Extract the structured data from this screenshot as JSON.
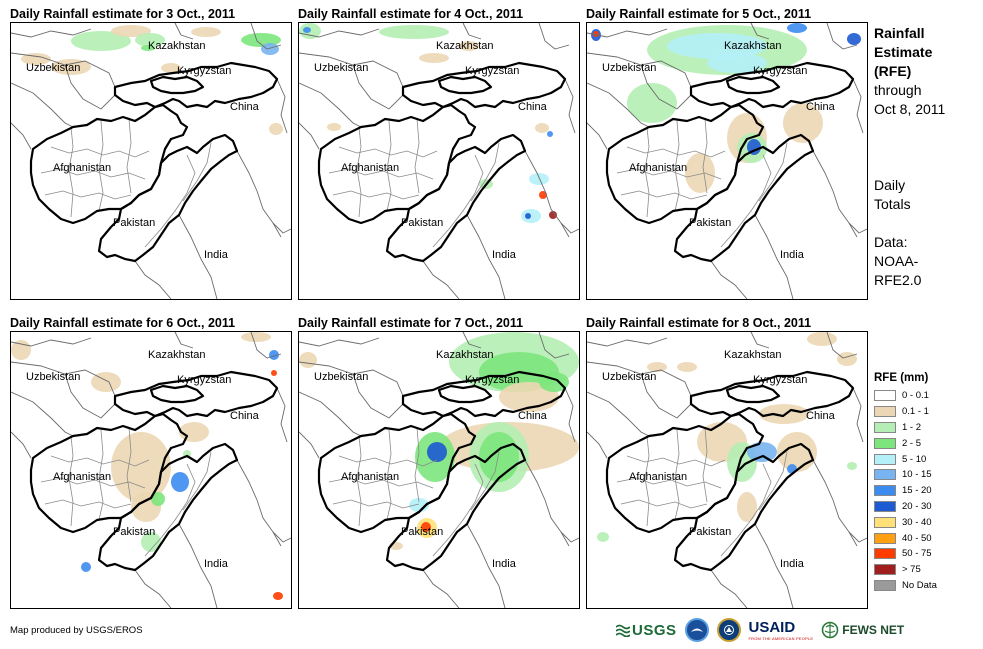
{
  "panels": [
    {
      "title": "Daily Rainfall estimate for 3 Oct., 2011"
    },
    {
      "title": "Daily Rainfall estimate for 4 Oct., 2011"
    },
    {
      "title": "Daily Rainfall estimate for 5 Oct., 2011"
    },
    {
      "title": "Daily Rainfall estimate for 6 Oct., 2011"
    },
    {
      "title": "Daily Rainfall estimate for 7 Oct., 2011"
    },
    {
      "title": "Daily Rainfall estimate for 8 Oct., 2011"
    }
  ],
  "countries": {
    "kazakhstan": "Kazakhstan",
    "uzbekistan": "Uzbekistan",
    "kyrgyzstan": "Kyrgyzstan",
    "china": "China",
    "afghanistan": "Afghanistan",
    "pakistan": "Pakistan",
    "india": "India"
  },
  "sidebar": {
    "title_lines": [
      "Rainfall",
      "Estimate",
      "(RFE)"
    ],
    "through_lines": [
      "through",
      "Oct 8, 2011"
    ],
    "totals_lines": [
      "Daily",
      "Totals"
    ],
    "data_lines": [
      "Data:",
      "NOAA-",
      "RFE2.0"
    ]
  },
  "legend": {
    "title": "RFE (mm)",
    "items": [
      {
        "label": "0 - 0.1",
        "color": "#ffffff"
      },
      {
        "label": "0.1 - 1",
        "color": "#ecd7b4"
      },
      {
        "label": "1 - 2",
        "color": "#b4eeb4"
      },
      {
        "label": "2 - 5",
        "color": "#7ce67c"
      },
      {
        "label": "5 - 10",
        "color": "#b4f0f8"
      },
      {
        "label": "10 - 15",
        "color": "#78b4f0"
      },
      {
        "label": "15 - 20",
        "color": "#3c8cf0"
      },
      {
        "label": "20 - 30",
        "color": "#1e5ad2"
      },
      {
        "label": "30 - 40",
        "color": "#ffe178"
      },
      {
        "label": "40 - 50",
        "color": "#ffa014"
      },
      {
        "label": "50 - 75",
        "color": "#ff3c00"
      },
      {
        "label": "> 75",
        "color": "#a01e1e"
      },
      {
        "label": "No Data",
        "color": "#9a9a9a"
      }
    ]
  },
  "footer": {
    "credit": "Map produced by USGS/EROS",
    "logos": {
      "usgs": "USGS",
      "noaa": "NOAA",
      "doi": "DOI",
      "usaid": "USAID",
      "usaid_sub": "FROM THE AMERICAN PEOPLE",
      "fews": "FEWS NET"
    }
  }
}
